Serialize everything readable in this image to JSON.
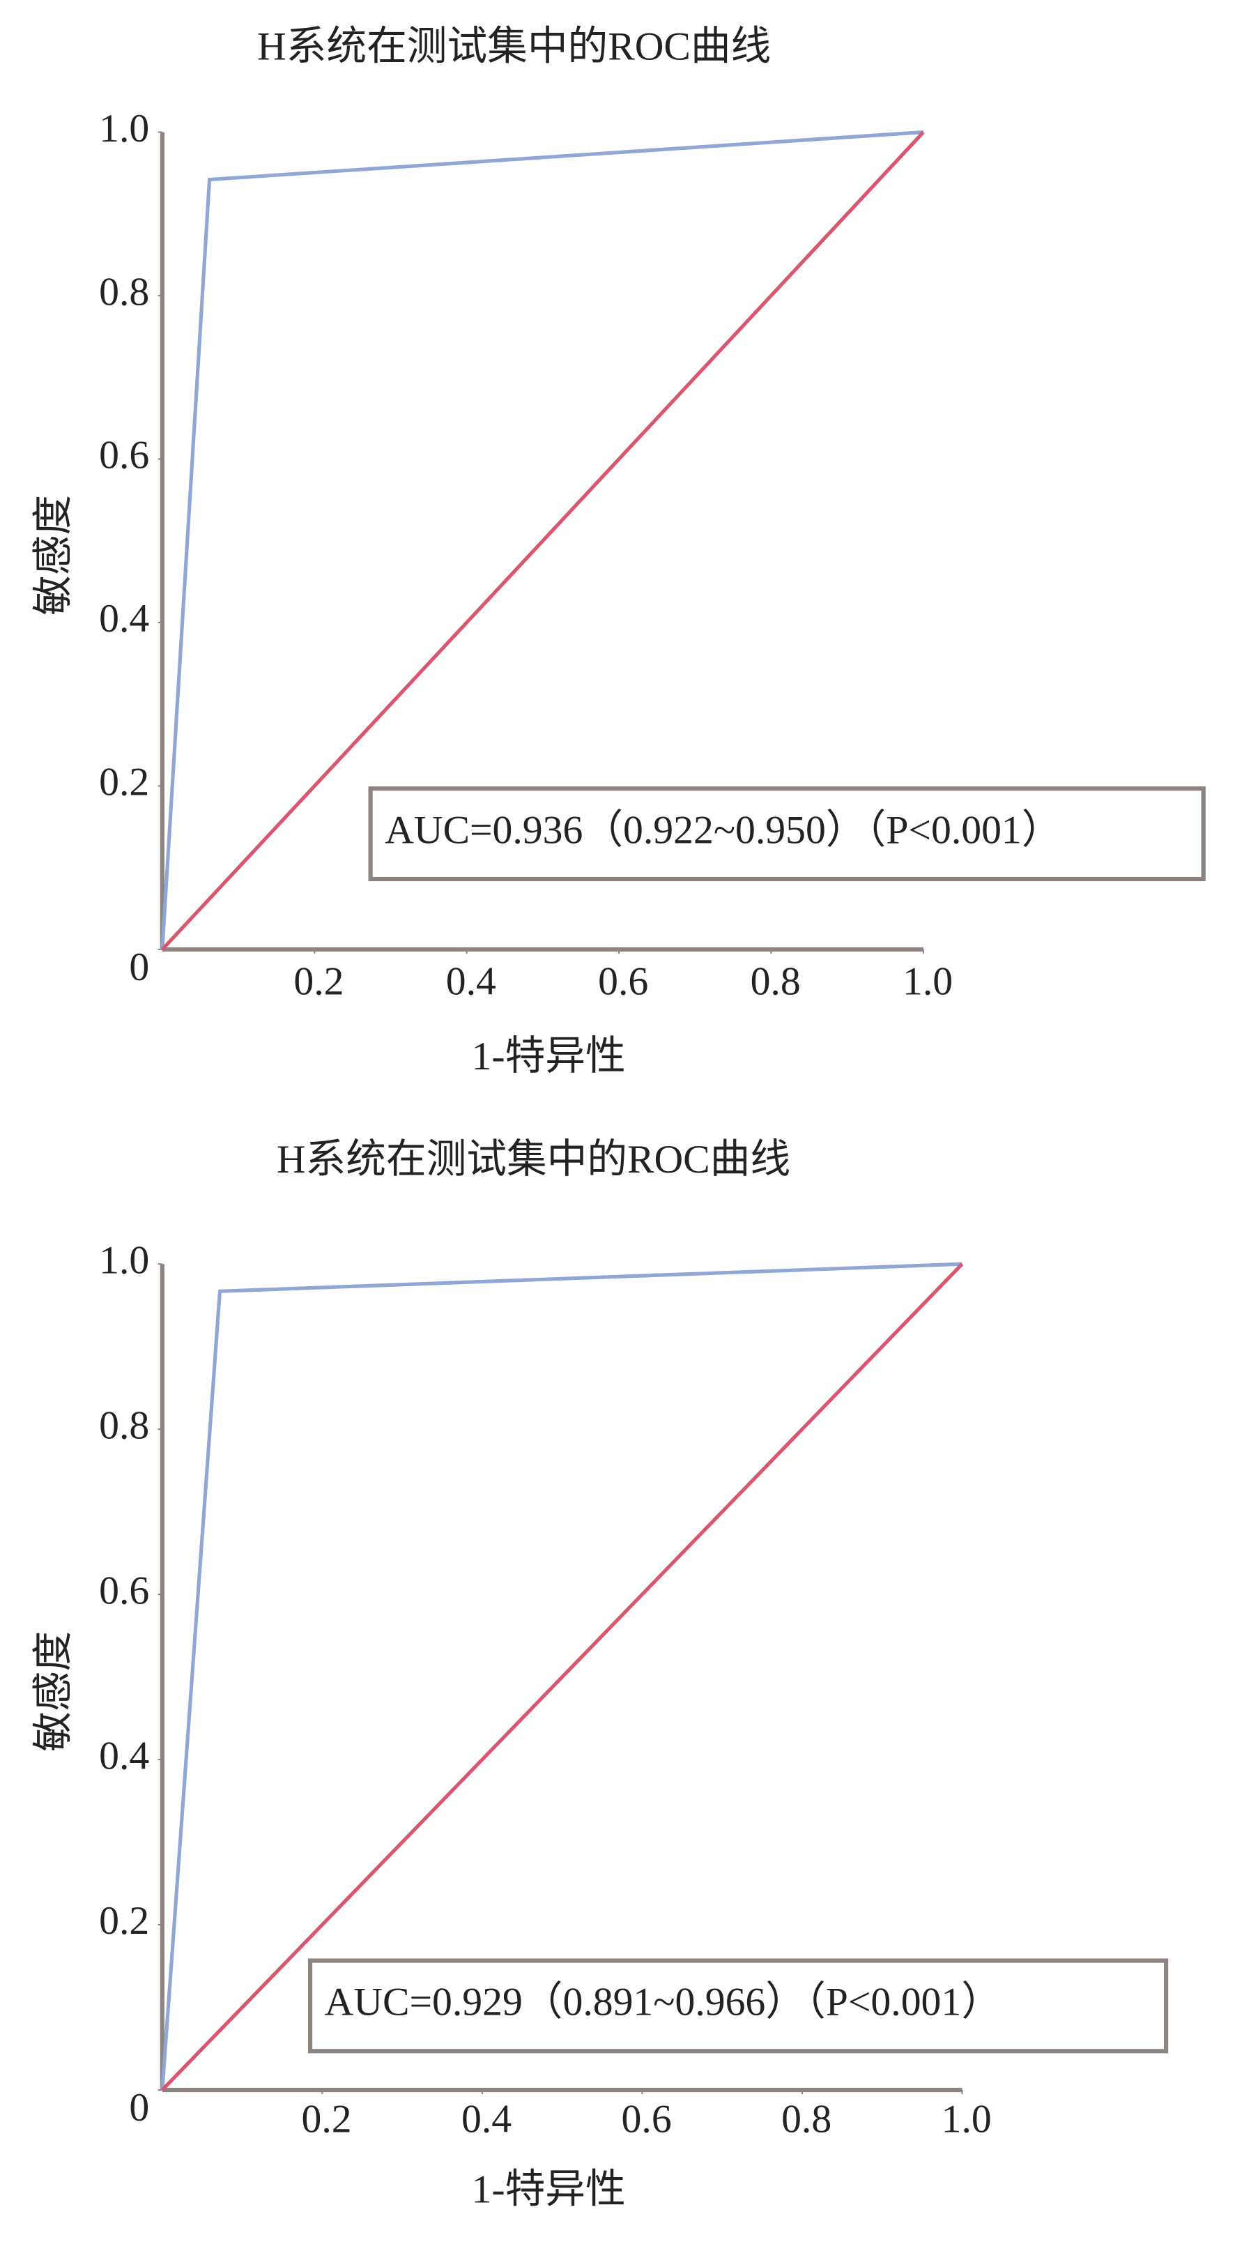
{
  "chart_data": [
    {
      "type": "line",
      "title": "H系统在测试集中的ROC曲线",
      "xlabel": "1-特异性",
      "ylabel": "敏感度",
      "series": [
        {
          "color": "#8fa6d6",
          "x": [
            0,
            0.062,
            1
          ],
          "values": [
            0,
            0.942,
            1
          ]
        },
        {
          "color": "#d9566e",
          "x": [
            0,
            1
          ],
          "values": [
            0,
            1
          ]
        }
      ],
      "xlim": [
        0,
        1
      ],
      "ylim": [
        0,
        1
      ],
      "xticks": [
        0.2,
        0.4,
        0.6,
        0.8,
        {
          "value": 1,
          "label": "1.0"
        }
      ],
      "yticks": [
        0,
        0.2,
        0.4,
        0.6,
        0.8,
        {
          "value": 1,
          "label": "1.0"
        }
      ],
      "annotation": "AUC=0.936（0.922~0.950）（P<0.001）"
    },
    {
      "type": "line",
      "title": "H系统在测试集中的ROC曲线",
      "xlabel": "1-特异性",
      "ylabel": "敏感度",
      "series": [
        {
          "color": "#8fa6d6",
          "x": [
            0,
            0.072,
            1
          ],
          "values": [
            0,
            0.967,
            1
          ]
        },
        {
          "color": "#d9566e",
          "x": [
            0,
            1
          ],
          "values": [
            0,
            1
          ]
        }
      ],
      "xlim": [
        0,
        1
      ],
      "ylim": [
        0,
        1
      ],
      "xticks": [
        0.2,
        0.4,
        0.6,
        0.8,
        {
          "value": 1,
          "label": "1.0"
        }
      ],
      "yticks": [
        0,
        0.2,
        0.4,
        0.6,
        0.8,
        {
          "value": 1,
          "label": "1.0"
        }
      ],
      "annotation": "AUC=0.929（0.891~0.966）（P<0.001）"
    }
  ]
}
